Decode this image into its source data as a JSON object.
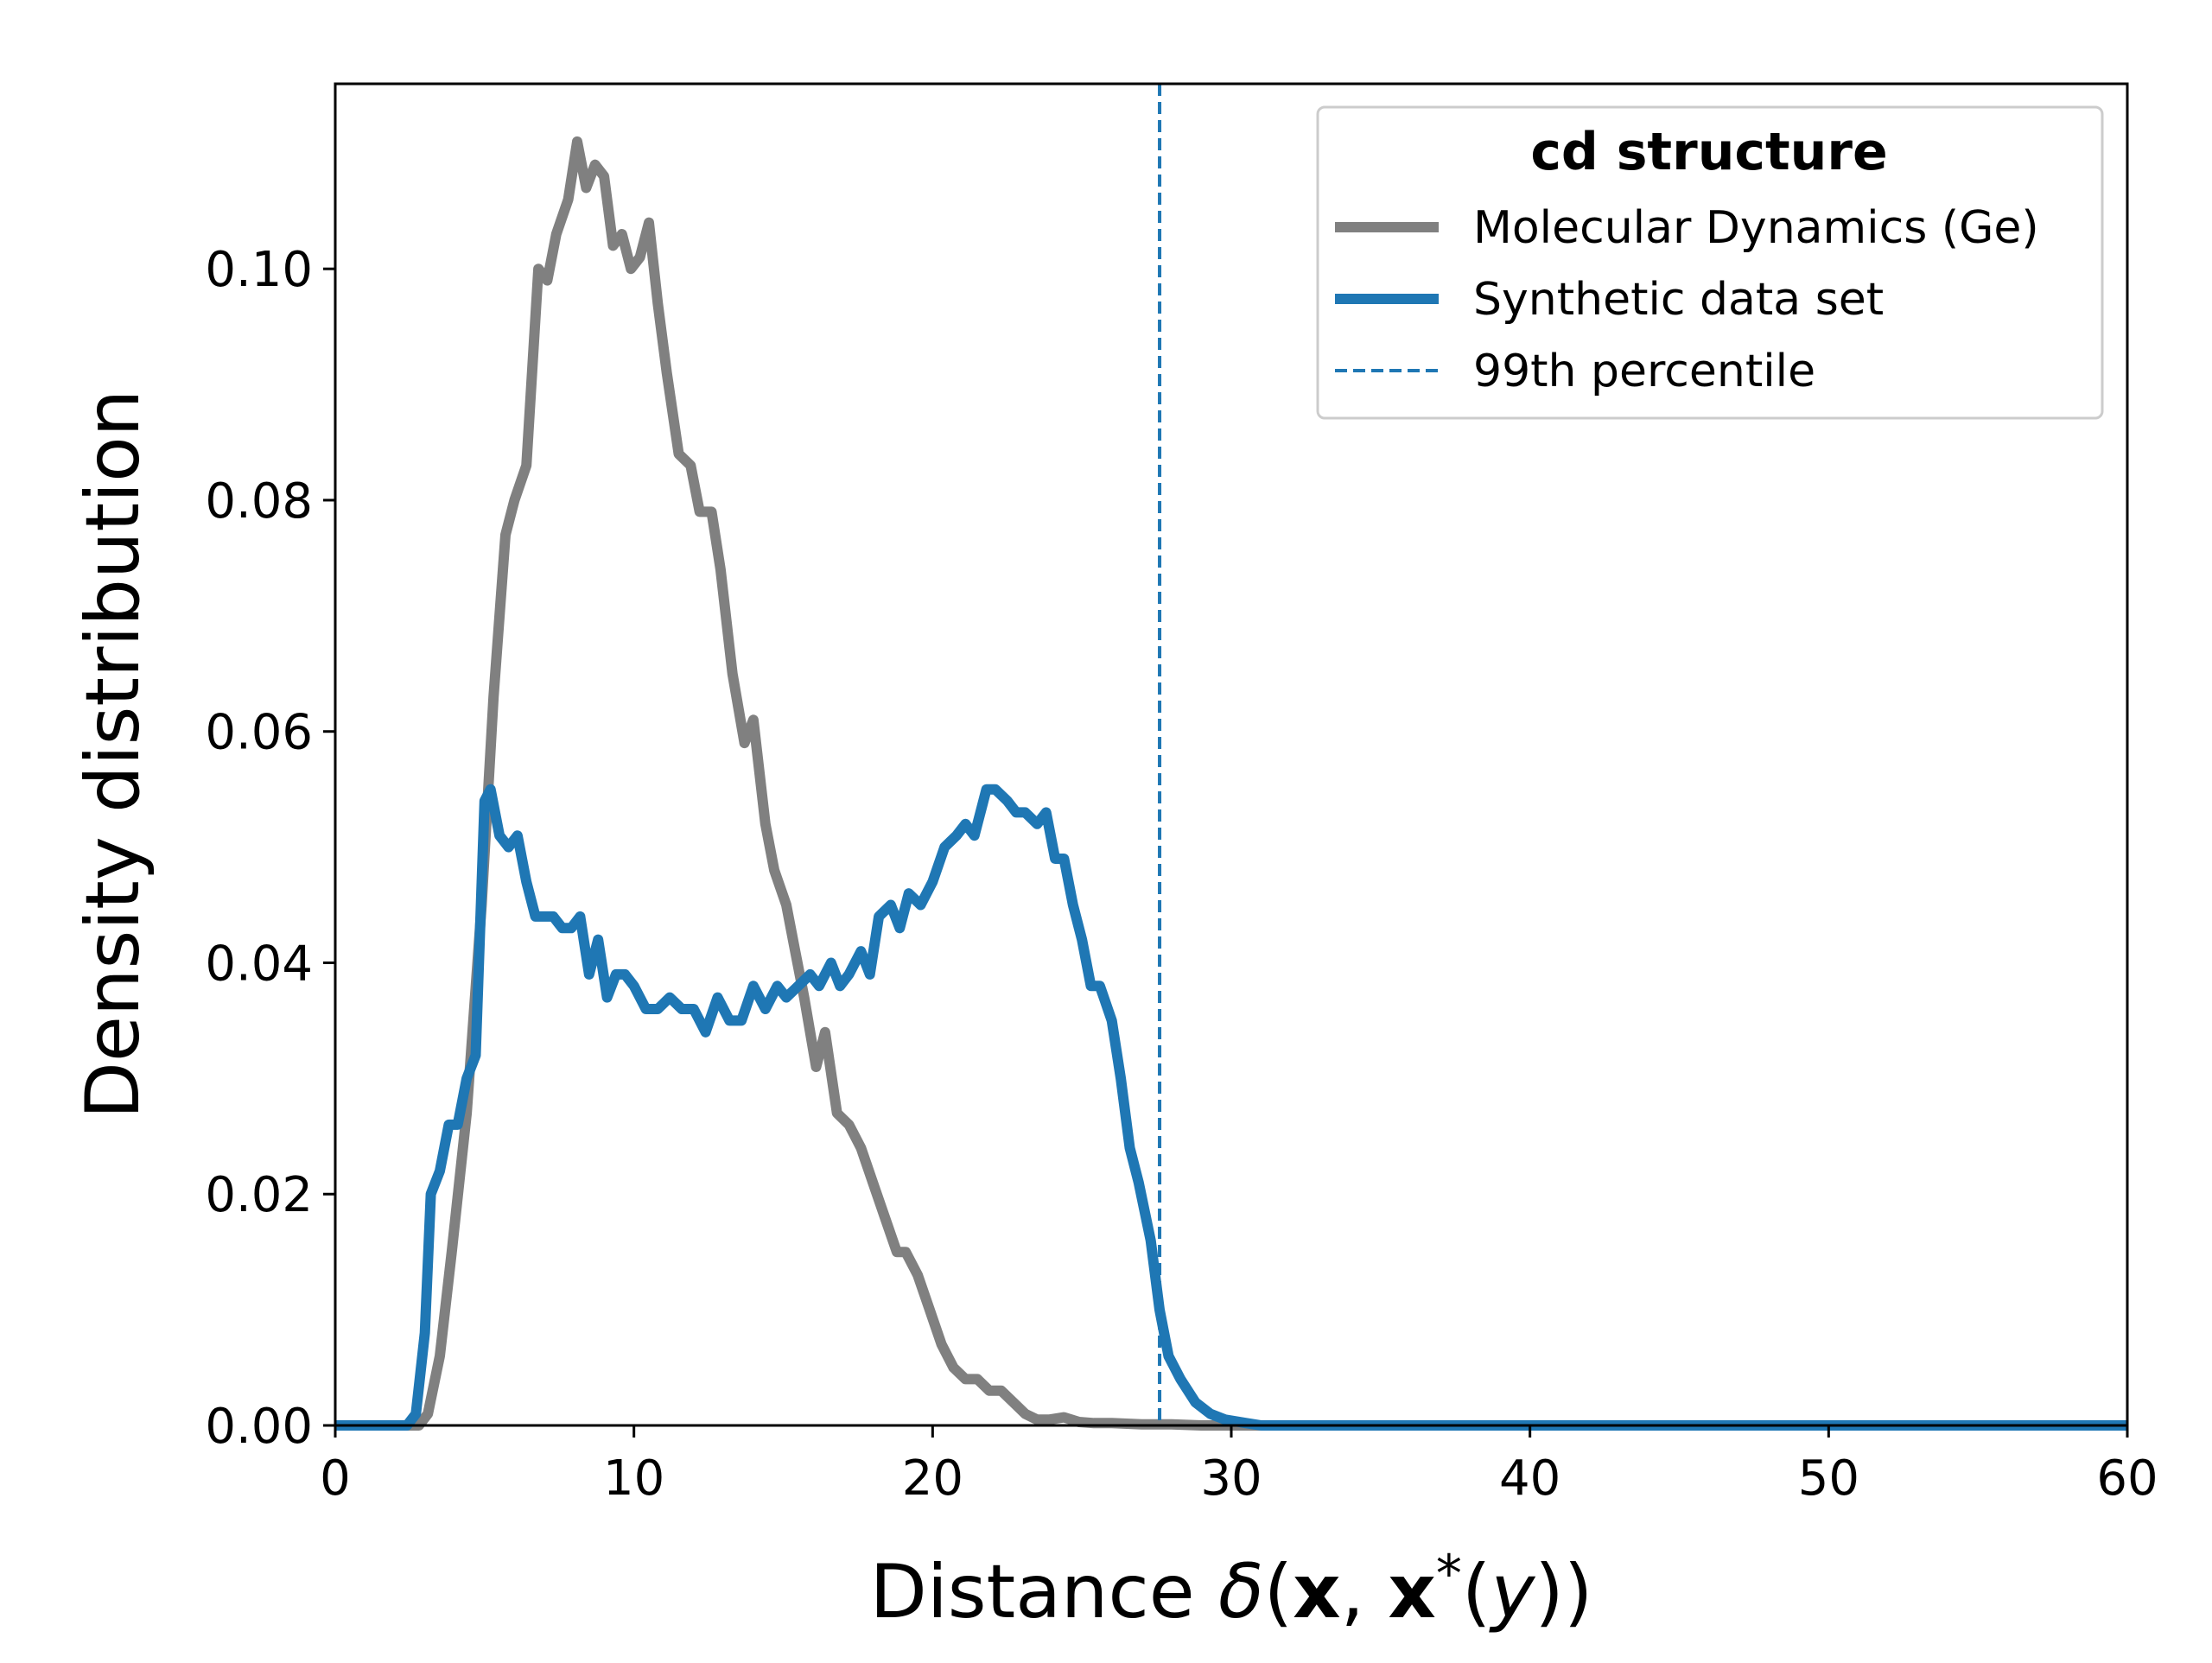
{
  "chart_data": {
    "type": "line",
    "xlabel": "Distance δ(x, x*(y))",
    "xlabel_parts": {
      "pre": "Distance ",
      "delta": "δ",
      "open": "(",
      "x1": "x",
      "comma": ", ",
      "x2": "x",
      "star": "*",
      "open2": "(",
      "y": "y",
      "close": "))"
    },
    "ylabel": "Density distribution",
    "xlim": [
      0,
      60
    ],
    "ylim": [
      0,
      0.116
    ],
    "xticks": [
      0,
      10,
      20,
      30,
      40,
      50,
      60
    ],
    "xtick_labels": [
      "0",
      "10",
      "20",
      "30",
      "40",
      "50",
      "60"
    ],
    "yticks": [
      0,
      0.02,
      0.04,
      0.06,
      0.08,
      0.1
    ],
    "ytick_labels": [
      "0.00",
      "0.02",
      "0.04",
      "0.06",
      "0.08",
      "0.10"
    ],
    "grid": false,
    "legend": {
      "title": "cd structure",
      "placement": "top-right",
      "entries": [
        "Molecular Dynamics (Ge)",
        "Synthetic data set",
        "99th percentile"
      ]
    },
    "vline": {
      "name": "99th percentile",
      "x": 27.6,
      "color": "#1f77b4",
      "style": "dashed"
    },
    "series": [
      {
        "name": "Molecular Dynamics (Ge)",
        "color": "#808080",
        "x": [
          0,
          2.8,
          3.1,
          3.5,
          3.9,
          4.4,
          4.9,
          5.3,
          5.7,
          6.0,
          6.4,
          6.8,
          7.1,
          7.4,
          7.8,
          8.1,
          8.4,
          8.7,
          9.0,
          9.3,
          9.6,
          9.9,
          10.2,
          10.5,
          10.8,
          11.1,
          11.5,
          11.9,
          12.2,
          12.6,
          12.9,
          13.3,
          13.7,
          14.0,
          14.4,
          14.7,
          15.1,
          15.4,
          15.7,
          16.1,
          16.4,
          16.8,
          17.2,
          17.6,
          18.0,
          18.4,
          18.8,
          19.1,
          19.5,
          19.9,
          20.3,
          20.7,
          21.1,
          21.5,
          21.9,
          22.3,
          22.7,
          23.1,
          23.5,
          23.9,
          24.4,
          24.9,
          25.4,
          26.0,
          27.0,
          28.0,
          29.0,
          60
        ],
        "y": [
          0,
          0,
          0.001,
          0.006,
          0.015,
          0.027,
          0.045,
          0.063,
          0.077,
          0.08,
          0.083,
          0.1,
          0.099,
          0.103,
          0.106,
          0.111,
          0.107,
          0.109,
          0.108,
          0.102,
          0.103,
          0.1,
          0.101,
          0.104,
          0.097,
          0.091,
          0.084,
          0.083,
          0.079,
          0.079,
          0.074,
          0.065,
          0.059,
          0.061,
          0.052,
          0.048,
          0.045,
          0.041,
          0.037,
          0.031,
          0.034,
          0.027,
          0.026,
          0.024,
          0.021,
          0.018,
          0.015,
          0.015,
          0.013,
          0.01,
          0.007,
          0.005,
          0.004,
          0.004,
          0.003,
          0.003,
          0.002,
          0.001,
          0.0005,
          0.0005,
          0.0007,
          0.0003,
          0.0002,
          0.0002,
          0.0001,
          0.0001,
          0.0,
          0.0
        ]
      },
      {
        "name": "Synthetic data set",
        "color": "#1f77b4",
        "x": [
          0,
          2.4,
          2.7,
          3.0,
          3.2,
          3.5,
          3.8,
          4.1,
          4.4,
          4.7,
          5.0,
          5.2,
          5.5,
          5.8,
          6.1,
          6.4,
          6.7,
          7.0,
          7.3,
          7.6,
          7.9,
          8.2,
          8.5,
          8.8,
          9.1,
          9.4,
          9.7,
          10.0,
          10.4,
          10.8,
          11.2,
          11.6,
          12.0,
          12.4,
          12.8,
          13.2,
          13.6,
          14.0,
          14.4,
          14.8,
          15.1,
          15.5,
          15.9,
          16.2,
          16.6,
          16.9,
          17.2,
          17.6,
          17.9,
          18.2,
          18.6,
          18.9,
          19.2,
          19.6,
          20.0,
          20.4,
          20.8,
          21.1,
          21.4,
          21.8,
          22.1,
          22.5,
          22.8,
          23.1,
          23.5,
          23.8,
          24.1,
          24.4,
          24.7,
          25.0,
          25.3,
          25.6,
          26.0,
          26.3,
          26.6,
          26.9,
          27.3,
          27.6,
          27.9,
          28.3,
          28.8,
          29.3,
          29.8,
          30.5,
          31.0,
          60
        ],
        "y": [
          0,
          0,
          0.001,
          0.008,
          0.02,
          0.022,
          0.026,
          0.026,
          0.03,
          0.032,
          0.054,
          0.055,
          0.051,
          0.05,
          0.051,
          0.047,
          0.044,
          0.044,
          0.044,
          0.043,
          0.043,
          0.044,
          0.039,
          0.042,
          0.037,
          0.039,
          0.039,
          0.038,
          0.036,
          0.036,
          0.037,
          0.036,
          0.036,
          0.034,
          0.037,
          0.035,
          0.035,
          0.038,
          0.036,
          0.038,
          0.037,
          0.038,
          0.039,
          0.038,
          0.04,
          0.038,
          0.039,
          0.041,
          0.039,
          0.044,
          0.045,
          0.043,
          0.046,
          0.045,
          0.047,
          0.05,
          0.051,
          0.052,
          0.051,
          0.055,
          0.055,
          0.054,
          0.053,
          0.053,
          0.052,
          0.053,
          0.049,
          0.049,
          0.045,
          0.042,
          0.038,
          0.038,
          0.035,
          0.03,
          0.024,
          0.021,
          0.016,
          0.01,
          0.006,
          0.004,
          0.002,
          0.001,
          0.0005,
          0.0002,
          0.0,
          0.0
        ]
      }
    ]
  }
}
